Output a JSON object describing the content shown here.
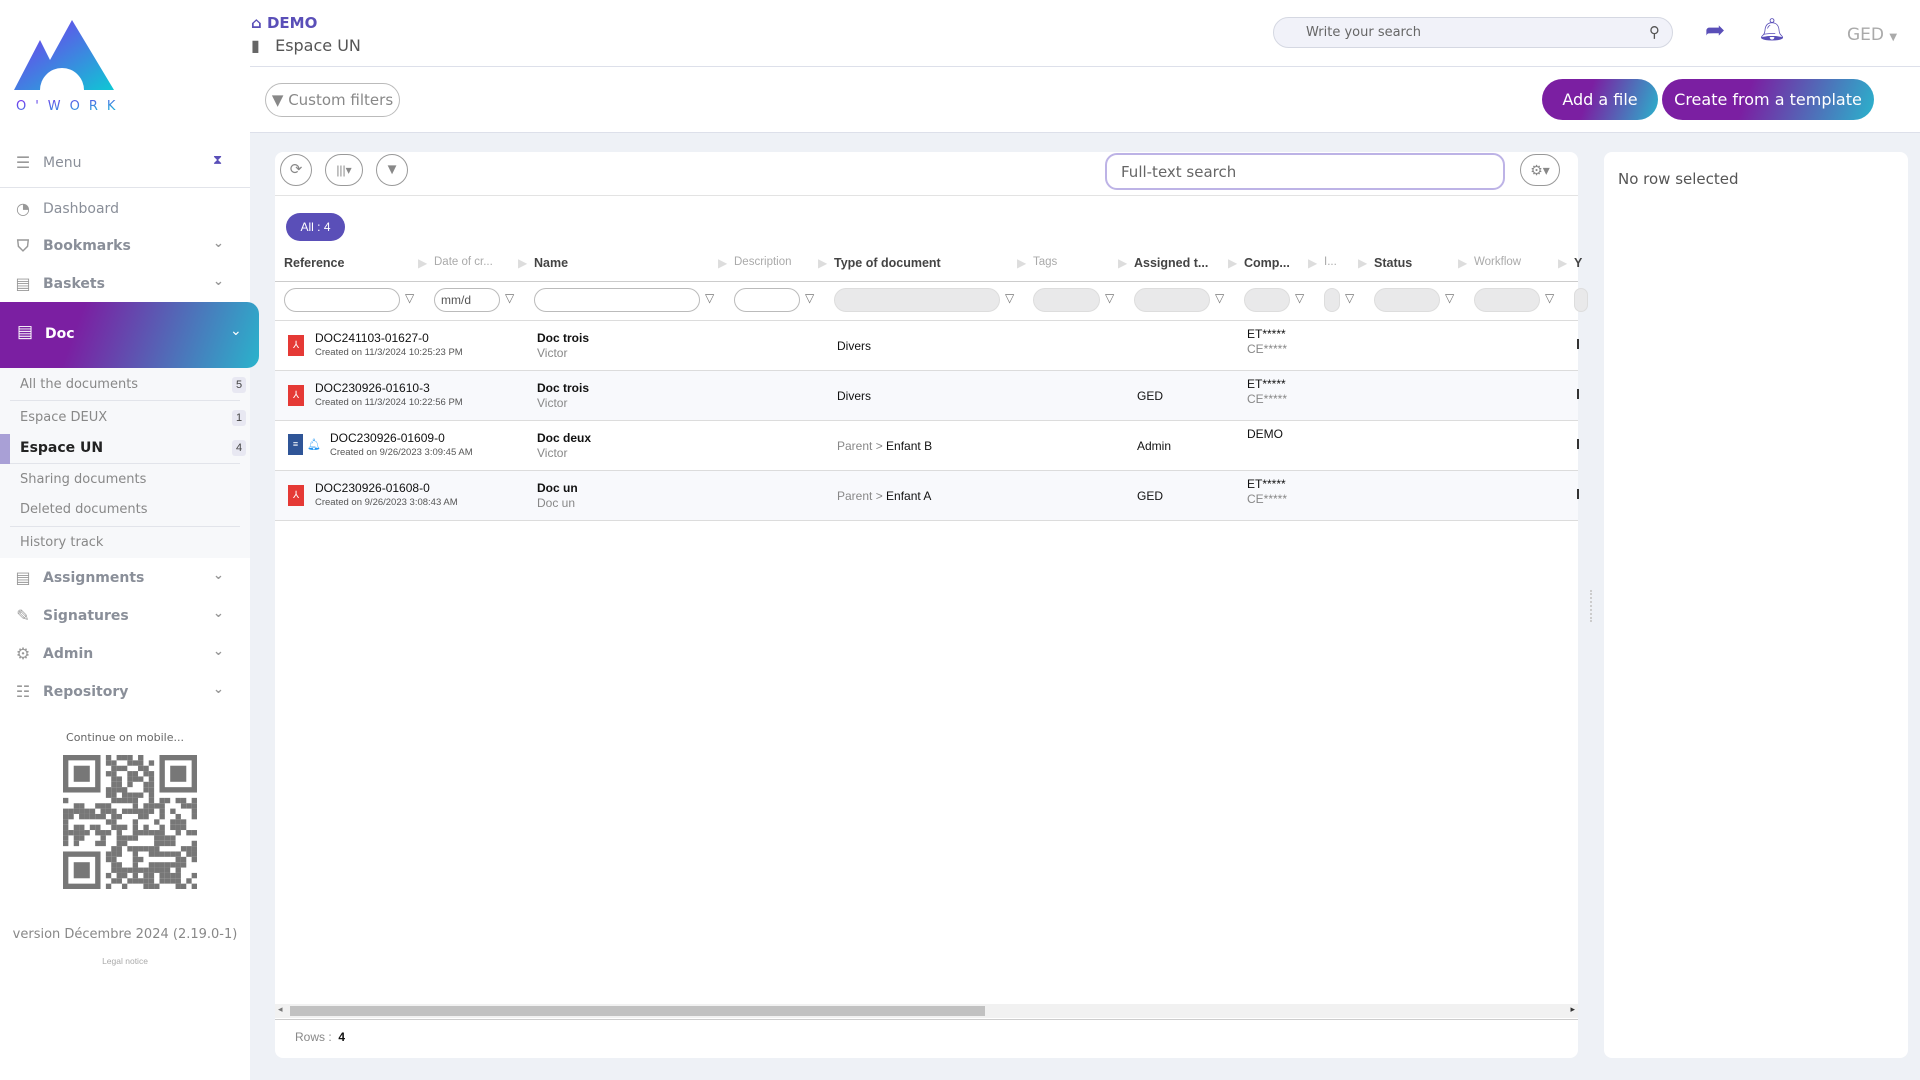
{
  "brand": {
    "logo_text": "O'WORK"
  },
  "breadcrumb": {
    "home": "DEMO",
    "space": "Espace UN"
  },
  "header": {
    "search_placeholder": "Write your search",
    "user_menu": "GED"
  },
  "toolbar": {
    "custom_filters": "Custom filters",
    "add_file": "Add a file",
    "create_template": "Create from a template"
  },
  "sidebar": {
    "menu_label": "Menu",
    "items": [
      {
        "label": "Dashboard",
        "icon": "dashboard-icon"
      },
      {
        "label": "Bookmarks",
        "icon": "bookmark-icon"
      },
      {
        "label": "Baskets",
        "icon": "book-icon"
      },
      {
        "label": "Doc",
        "icon": "book-icon"
      },
      {
        "label": "Assignments",
        "icon": "book-icon"
      },
      {
        "label": "Signatures",
        "icon": "signature-icon"
      },
      {
        "label": "Admin",
        "icon": "gear-icon"
      },
      {
        "label": "Repository",
        "icon": "list-icon"
      }
    ],
    "doc_sub": [
      {
        "label": "All the documents",
        "count": "5"
      },
      {
        "label": "Espace DEUX",
        "count": "1"
      },
      {
        "label": "Espace UN",
        "count": "4",
        "active": true
      },
      {
        "label": "Sharing documents"
      },
      {
        "label": "Deleted documents"
      },
      {
        "label": "History track"
      }
    ],
    "mobile": "Continue on mobile...",
    "version": "version Décembre 2024 (2.19.0-1)",
    "legal": "Legal notice"
  },
  "grid": {
    "search_placeholder": "Full-text search",
    "all_pill": "All : 4",
    "date_placeholder": "mm/d",
    "columns": [
      "Reference",
      "Date of cr...",
      "Name",
      "Description",
      "Type of document",
      "Tags",
      "Assigned t...",
      "Comp...",
      "I...",
      "Status",
      "Workflow",
      "Y"
    ],
    "rows": [
      {
        "ref": "DOC241103-01627-0",
        "created": "Created on 11/3/2024 10:25:23 PM",
        "name": "Doc trois",
        "sub": "Victor",
        "type_parent": "",
        "type": "Divers",
        "assigned": "",
        "comp1": "ET*****",
        "comp2": "CE*****",
        "icon": "pdf"
      },
      {
        "ref": "DOC230926-01610-3",
        "created": "Created on 11/3/2024 10:22:56 PM",
        "name": "Doc trois",
        "sub": "Victor",
        "type_parent": "",
        "type": "Divers",
        "assigned": "GED",
        "comp1": "ET*****",
        "comp2": "CE*****",
        "icon": "pdf"
      },
      {
        "ref": "DOC230926-01609-0",
        "created": "Created on 9/26/2023 3:09:45 AM",
        "name": "Doc deux",
        "sub": "Victor",
        "type_parent": "Parent >",
        "type": "Enfant B",
        "assigned": "Admin",
        "comp1": "DEMO",
        "comp2": "",
        "icon": "doc"
      },
      {
        "ref": "DOC230926-01608-0",
        "created": "Created on 9/26/2023 3:08:43 AM",
        "name": "Doc un",
        "sub": "Doc un",
        "type_parent": "Parent >",
        "type": "Enfant A",
        "assigned": "GED",
        "comp1": "ET*****",
        "comp2": "CE*****",
        "icon": "pdf"
      }
    ],
    "rows_label": "Rows :",
    "rows_count": "4"
  },
  "detail": {
    "empty": "No row selected"
  },
  "colors": {
    "accent": "#5a4fb8",
    "gradient_start": "#7b1fa2",
    "gradient_end": "#2ab3cc",
    "pdf": "#e53935"
  }
}
